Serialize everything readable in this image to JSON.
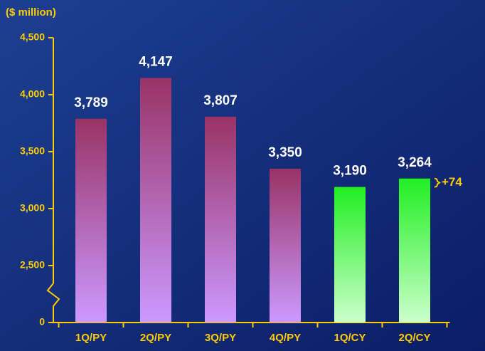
{
  "chart_data": {
    "type": "bar",
    "title": "($ million)",
    "categories": [
      "1Q/PY",
      "2Q/PY",
      "3Q/PY",
      "4Q/PY",
      "1Q/CY",
      "2Q/CY"
    ],
    "values": [
      3789,
      4147,
      3807,
      3350,
      3190,
      3264
    ],
    "value_labels": [
      "3,789",
      "4,147",
      "3,807",
      "3,350",
      "3,190",
      "3,264"
    ],
    "colors": [
      "#993366",
      "#993366",
      "#993366",
      "#993366",
      "#22ee22",
      "#22ee22"
    ],
    "bottom_colors": [
      "#cc99ff",
      "#cc99ff",
      "#cc99ff",
      "#cc99ff",
      "#ccffcc",
      "#ccffcc"
    ],
    "ylim": [
      0,
      4500
    ],
    "axis_break": [
      0,
      2500
    ],
    "yticks": [
      0,
      {
        "value": 2500,
        "label": "2,500"
      },
      {
        "value": 3000,
        "label": "3,000"
      },
      {
        "value": 3500,
        "label": "3,500"
      },
      {
        "value": 4000,
        "label": "4,000"
      },
      {
        "value": 4500,
        "label": "4,500"
      }
    ],
    "annotation": "+74"
  }
}
